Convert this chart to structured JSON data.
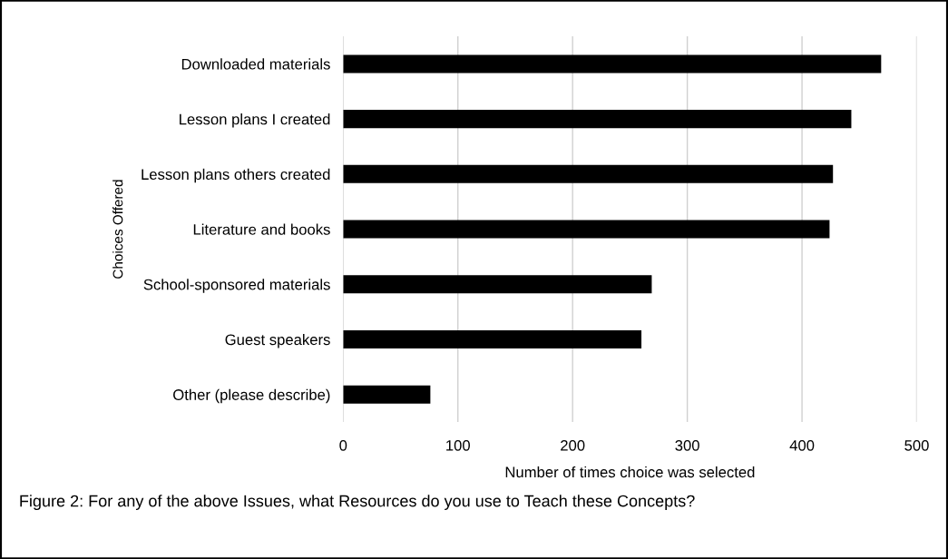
{
  "chart_data": {
    "type": "bar",
    "orientation": "horizontal",
    "categories": [
      "Downloaded materials",
      "Lesson plans I created",
      "Lesson plans others created",
      "Literature and books",
      "School-sponsored materials",
      "Guest speakers",
      "Other (please describe)"
    ],
    "values": [
      469,
      443,
      427,
      424,
      269,
      260,
      76
    ],
    "color": "#000000",
    "xlim": [
      0,
      500
    ],
    "xticks": [
      0,
      100,
      200,
      300,
      400,
      500
    ],
    "xlabel": "Number of times choice was selected",
    "ylabel": "Choices Offered",
    "grid": "x",
    "annotations": [
      "Figure 2: For any of the above Issues, what Resources do you use to Teach these Concepts?"
    ]
  }
}
